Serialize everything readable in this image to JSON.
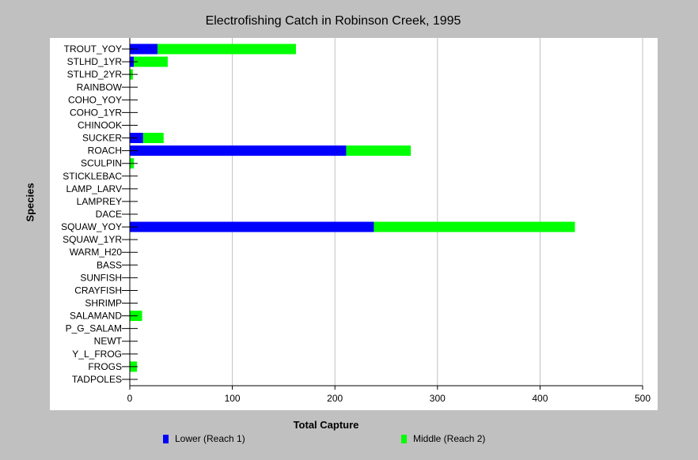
{
  "chart_data": {
    "type": "bar",
    "orientation": "horizontal",
    "stacked": true,
    "title": "Electrofishing Catch in Robinson Creek, 1995",
    "xlabel": "Total Capture",
    "ylabel": "Species",
    "xlim": [
      0,
      500
    ],
    "xticks": [
      0,
      100,
      200,
      300,
      400,
      500
    ],
    "grid": "vertical",
    "legend_position": "bottom",
    "categories": [
      "TROUT_YOY",
      "STLHD_1YR",
      "STLHD_2YR",
      "RAINBOW",
      "COHO_YOY",
      "COHO_1YR",
      "CHINOOK",
      "SUCKER",
      "ROACH",
      "SCULPIN",
      "STICKLEBAC",
      "LAMP_LARV",
      "LAMPREY",
      "DACE",
      "SQUAW_YOY",
      "SQUAW_1YR",
      "WARM_H20",
      "BASS",
      "SUNFISH",
      "CRAYFISH",
      "SHRIMP",
      "SALAMAND",
      "P_G_SALAM",
      "NEWT",
      "Y_L_FROG",
      "FROGS",
      "TADPOLES"
    ],
    "series": [
      {
        "name": "Lower (Reach 1)",
        "color": "#0000ff",
        "values": [
          27,
          4,
          0,
          0,
          0,
          0,
          0,
          13,
          211,
          0,
          0,
          0,
          0,
          0,
          238,
          0,
          0,
          0,
          0,
          0,
          0,
          0,
          0,
          0,
          0,
          0,
          0
        ]
      },
      {
        "name": "Middle (Reach 2)",
        "color": "#00ff00",
        "values": [
          135,
          33,
          3,
          0,
          0,
          0,
          0,
          20,
          63,
          4,
          0,
          0,
          0,
          0,
          196,
          0,
          0,
          0,
          0,
          0,
          0,
          12,
          0,
          0,
          0,
          7,
          0
        ]
      }
    ]
  }
}
